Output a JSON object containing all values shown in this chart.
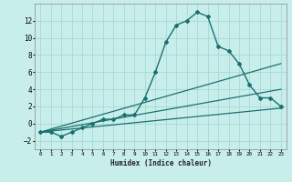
{
  "xlabel": "Humidex (Indice chaleur)",
  "xlim": [
    -0.5,
    23.5
  ],
  "ylim": [
    -3,
    14
  ],
  "yticks": [
    -2,
    0,
    2,
    4,
    6,
    8,
    10,
    12
  ],
  "xticks": [
    0,
    1,
    2,
    3,
    4,
    5,
    6,
    7,
    8,
    9,
    10,
    11,
    12,
    13,
    14,
    15,
    16,
    17,
    18,
    19,
    20,
    21,
    22,
    23
  ],
  "background_color": "#c8eeec",
  "grid_color": "#a8d8d4",
  "line_color": "#1a7070",
  "main_line": {
    "x": [
      0,
      1,
      2,
      3,
      4,
      5,
      6,
      7,
      8,
      9,
      10,
      11,
      12,
      13,
      14,
      15,
      16,
      17,
      18,
      19,
      20,
      21,
      22,
      23
    ],
    "y": [
      -1,
      -1,
      -1.5,
      -1,
      -0.5,
      0,
      0.5,
      0.5,
      1,
      1,
      3,
      6,
      9.5,
      11.5,
      12,
      13,
      12.5,
      9,
      8.5,
      7,
      4.5,
      3,
      3,
      2
    ],
    "marker": "D",
    "markersize": 2.0,
    "linewidth": 1.0
  },
  "straight_lines": [
    {
      "x0": 0,
      "y0": -1,
      "x1": 23,
      "y1": 7.0,
      "linewidth": 0.9
    },
    {
      "x0": 0,
      "y0": -1,
      "x1": 23,
      "y1": 4.0,
      "linewidth": 0.9
    },
    {
      "x0": 0,
      "y0": -1,
      "x1": 23,
      "y1": 1.8,
      "linewidth": 0.9
    }
  ]
}
